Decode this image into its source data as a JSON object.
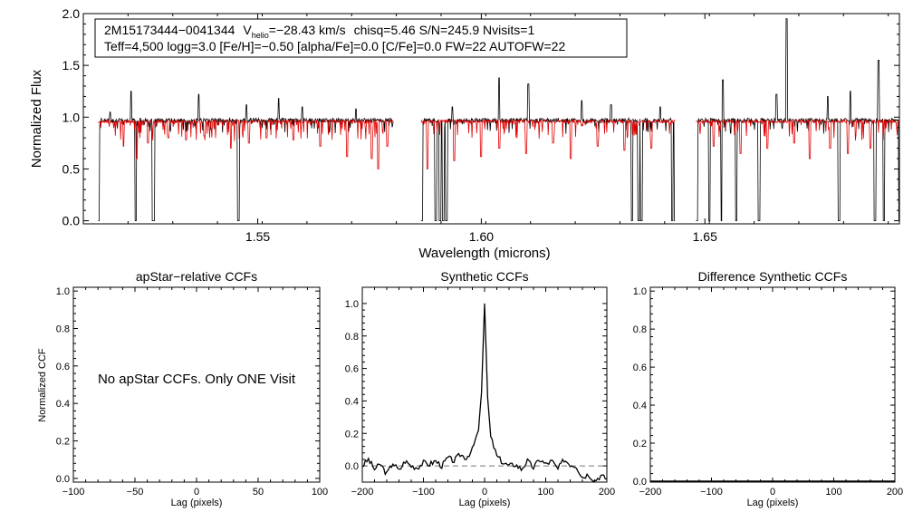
{
  "colors": {
    "observed": "#000000",
    "model": "#e00000",
    "zero_line": "#777777"
  },
  "chart_data": [
    {
      "id": "spectrum",
      "type": "line",
      "title": "",
      "header": {
        "line1": {
          "star_id": "2M15173444−0041344",
          "v_prefix": "V",
          "v_sub": "helio",
          "v_value": "=−28.43 km/s",
          "rest": "chisq=5.46  S/N=245.9  Nvisits=1"
        },
        "line2": "Teff=4,500 logg=3.0 [Fe/H]=−0.50 [alpha/Fe]=0.0 [C/Fe]=0.0 FW=22 AUTOFW=22"
      },
      "xlabel": "Wavelength (microns)",
      "ylabel": "Normalized Flux",
      "xlim": [
        1.511,
        1.6935
      ],
      "ylim": [
        -0.03,
        2.0
      ],
      "xticks": [
        1.55,
        1.6,
        1.65
      ],
      "xtick_labels": [
        "1.55",
        "1.60",
        "1.65"
      ],
      "yticks": [
        0.0,
        0.5,
        1.0,
        1.5,
        2.0
      ],
      "ytick_labels": [
        "0.0",
        "0.5",
        "1.0",
        "1.5",
        "2.0"
      ],
      "chip_ranges": [
        [
          1.5143,
          1.5803
        ],
        [
          1.5865,
          1.6433
        ],
        [
          1.648,
          1.6935
        ]
      ],
      "series": [
        {
          "name": "",
          "role": "observed",
          "color": "#000000",
          "deep_lines": [
            1.5144,
            1.5227,
            1.5266,
            1.5268,
            1.5457,
            1.5867,
            1.5898,
            1.5908,
            1.5915,
            1.5922,
            1.6337,
            1.6352,
            1.6358,
            1.6427,
            1.6433,
            1.6482,
            1.651,
            1.6538,
            1.657,
            1.6621,
            1.68,
            1.688,
            1.69,
            1.6935
          ],
          "emission_spikes": [
            [
              1.517,
              1.05
            ],
            [
              1.5217,
              1.25
            ],
            [
              1.5368,
              1.22
            ],
            [
              1.5475,
              1.12
            ],
            [
              1.5547,
              1.18
            ],
            [
              1.56,
              1.1
            ],
            [
              1.572,
              1.08
            ],
            [
              1.5935,
              1.1
            ],
            [
              1.604,
              1.38
            ],
            [
              1.6105,
              1.32
            ],
            [
              1.6225,
              1.16
            ],
            [
              1.629,
              1.12
            ],
            [
              1.64,
              1.1
            ],
            [
              1.654,
              1.36
            ],
            [
              1.666,
              1.22
            ],
            [
              1.6683,
              1.95
            ],
            [
              1.6775,
              1.2
            ],
            [
              1.6825,
              1.25
            ],
            [
              1.6888,
              1.55
            ]
          ]
        },
        {
          "name": "",
          "role": "model",
          "color": "#e00000",
          "absorption_features": [
            [
              1.52,
              0.72
            ],
            [
              1.5229,
              0.6
            ],
            [
              1.5255,
              0.75
            ],
            [
              1.53,
              0.8
            ],
            [
              1.534,
              0.78
            ],
            [
              1.538,
              0.82
            ],
            [
              1.544,
              0.7
            ],
            [
              1.548,
              0.75
            ],
            [
              1.552,
              0.8
            ],
            [
              1.558,
              0.78
            ],
            [
              1.564,
              0.72
            ],
            [
              1.57,
              0.62
            ],
            [
              1.5755,
              0.6
            ],
            [
              1.577,
              0.5
            ],
            [
              1.579,
              0.72
            ],
            [
              1.588,
              0.5
            ],
            [
              1.594,
              0.58
            ],
            [
              1.6,
              0.62
            ],
            [
              1.604,
              0.7
            ],
            [
              1.61,
              0.65
            ],
            [
              1.616,
              0.75
            ],
            [
              1.62,
              0.6
            ],
            [
              1.626,
              0.72
            ],
            [
              1.632,
              0.68
            ],
            [
              1.638,
              0.7
            ],
            [
              1.652,
              0.72
            ],
            [
              1.658,
              0.65
            ],
            [
              1.664,
              0.7
            ],
            [
              1.67,
              0.75
            ],
            [
              1.6735,
              0.6
            ],
            [
              1.678,
              0.7
            ],
            [
              1.682,
              0.65
            ],
            [
              1.687,
              0.7
            ]
          ]
        }
      ]
    },
    {
      "id": "apstar_ccf",
      "type": "line",
      "title": "apStar−relative CCFs",
      "xlabel": "Lag (pixels)",
      "ylabel": "Normalized CCF",
      "xlim": [
        -100,
        100
      ],
      "ylim": [
        -0.02,
        1.02
      ],
      "xticks": [
        -100,
        -50,
        0,
        50,
        100
      ],
      "xtick_labels": [
        "−100",
        "−50",
        "0",
        "50",
        "100"
      ],
      "yticks": [
        0.0,
        0.2,
        0.4,
        0.6,
        0.8,
        1.0
      ],
      "ytick_labels": [
        "0.0",
        "0.2",
        "0.4",
        "0.6",
        "0.8",
        "1.0"
      ],
      "annotation": "No apStar CCFs.  Only ONE Visit",
      "series": []
    },
    {
      "id": "synthetic_ccf",
      "type": "line",
      "title": "Synthetic CCFs",
      "xlabel": "Lag (pixels)",
      "ylabel": "",
      "xlim": [
        -200,
        200
      ],
      "ylim": [
        -0.1,
        1.1
      ],
      "xticks": [
        -200,
        -100,
        0,
        100,
        200
      ],
      "xtick_labels": [
        "−200",
        "−100",
        "0",
        "100",
        "200"
      ],
      "yticks": [
        0.0,
        0.2,
        0.4,
        0.6,
        0.8,
        1.0
      ],
      "ytick_labels": [
        "0.0",
        "0.2",
        "0.4",
        "0.6",
        "0.8",
        "1.0"
      ],
      "zero_line": true,
      "series": [
        {
          "name": "",
          "color": "#000000",
          "peak": {
            "x": 0,
            "y": 1.0,
            "width": 6
          },
          "noise_amplitude": 0.035,
          "points": [
            [
              -200,
              0.0
            ],
            [
              -190,
              0.04
            ],
            [
              -180,
              -0.02
            ],
            [
              -170,
              0.01
            ],
            [
              -160,
              -0.05
            ],
            [
              -150,
              0.02
            ],
            [
              -140,
              -0.03
            ],
            [
              -130,
              0.03
            ],
            [
              -120,
              0.0
            ],
            [
              -110,
              -0.01
            ],
            [
              -100,
              0.02
            ],
            [
              -90,
              0.01
            ],
            [
              -80,
              0.03
            ],
            [
              -70,
              0.0
            ],
            [
              -60,
              0.05
            ],
            [
              -50,
              0.03
            ],
            [
              -40,
              0.07
            ],
            [
              -30,
              0.05
            ],
            [
              -20,
              0.1
            ],
            [
              -10,
              0.22
            ],
            [
              -5,
              0.45
            ],
            [
              0,
              1.0
            ],
            [
              5,
              0.42
            ],
            [
              10,
              0.18
            ],
            [
              20,
              0.06
            ],
            [
              30,
              0.02
            ],
            [
              40,
              0.0
            ],
            [
              50,
              0.01
            ],
            [
              60,
              -0.02
            ],
            [
              70,
              0.03
            ],
            [
              80,
              -0.01
            ],
            [
              90,
              0.04
            ],
            [
              100,
              0.01
            ],
            [
              110,
              0.03
            ],
            [
              120,
              -0.02
            ],
            [
              130,
              0.04
            ],
            [
              140,
              0.01
            ],
            [
              150,
              0.0
            ],
            [
              160,
              -0.07
            ],
            [
              170,
              -0.05
            ],
            [
              180,
              -0.09
            ],
            [
              190,
              -0.06
            ],
            [
              200,
              -0.08
            ]
          ]
        }
      ]
    },
    {
      "id": "difference_ccf",
      "type": "line",
      "title": "Difference Synthetic CCFs",
      "xlabel": "Lag (pixels)",
      "ylabel": "",
      "xlim": [
        -200,
        200
      ],
      "ylim": [
        -0.005,
        1.02
      ],
      "xticks": [
        -200,
        -100,
        0,
        100,
        200
      ],
      "xtick_labels": [
        "−200",
        "−100",
        "0",
        "100",
        "200"
      ],
      "yticks": [
        0.0,
        0.2,
        0.4,
        0.6,
        0.8,
        1.0
      ],
      "ytick_labels": [
        "0.0",
        "0.2",
        "0.4",
        "0.6",
        "0.8",
        "1.0"
      ],
      "series": [
        {
          "name": "",
          "color": "#000000",
          "points": [
            [
              -200,
              0.0
            ],
            [
              200,
              0.0
            ]
          ]
        }
      ]
    }
  ]
}
